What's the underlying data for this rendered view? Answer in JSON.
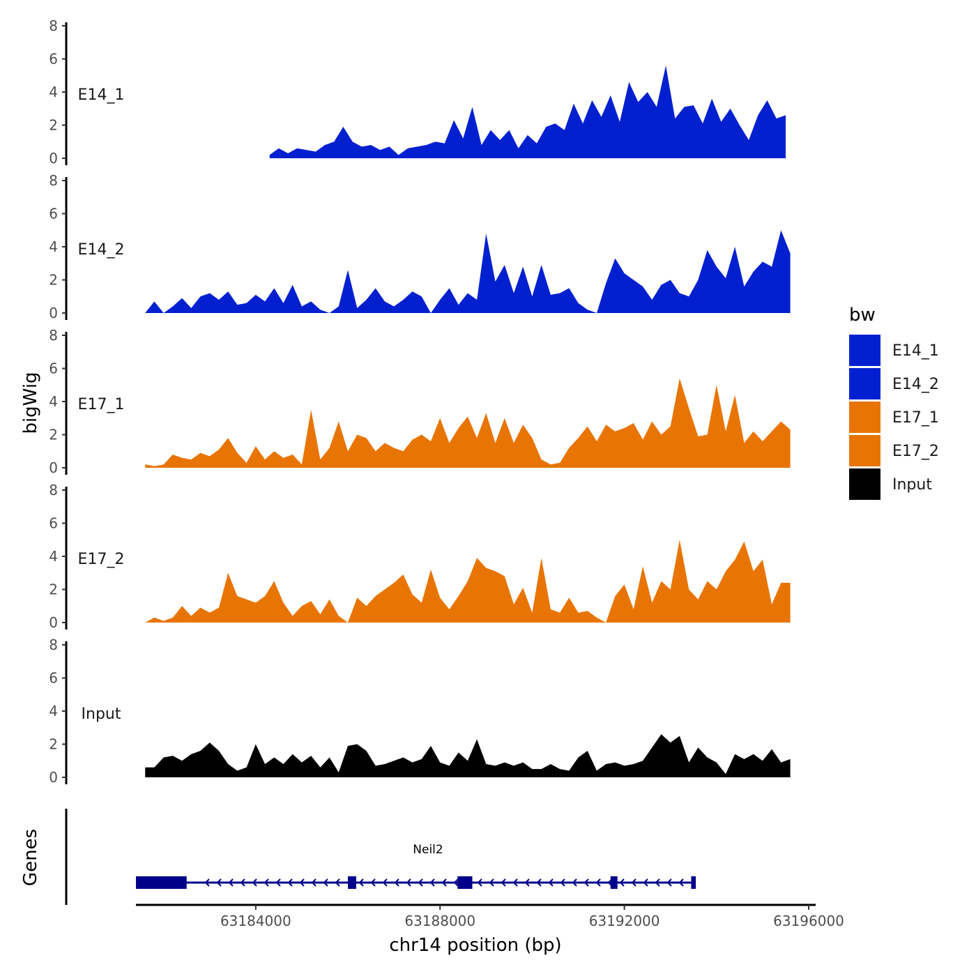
{
  "chart_data": {
    "type": "area",
    "xlabel": "chr14 position (bp)",
    "ylabel": "bigWig",
    "genes_label": "Genes",
    "xlim": [
      63181400,
      63196000
    ],
    "xticks": [
      63184000,
      63188000,
      63192000,
      63196000
    ],
    "xtick_labels": [
      "63184000",
      "63188000",
      "63192000",
      "63196000"
    ],
    "ylim": [
      0,
      8
    ],
    "yticks": [
      0,
      2,
      4,
      6,
      8
    ],
    "ytick_labels": [
      "0",
      "2",
      "4",
      "6",
      "8"
    ],
    "legend": {
      "title": "bw",
      "position": "right",
      "entries": [
        {
          "label": "E14_1",
          "color": "#0020D0"
        },
        {
          "label": "E14_2",
          "color": "#0020D0"
        },
        {
          "label": "E17_1",
          "color": "#E87503"
        },
        {
          "label": "E17_2",
          "color": "#E87503"
        },
        {
          "label": "Input",
          "color": "#000000"
        }
      ]
    },
    "series": [
      {
        "name": "E14_1",
        "color": "#0020D0",
        "x": [
          63184300,
          63184500,
          63184700,
          63184900,
          63185100,
          63185300,
          63185500,
          63185700,
          63185900,
          63186100,
          63186300,
          63186500,
          63186700,
          63186900,
          63187100,
          63187300,
          63187500,
          63187700,
          63187900,
          63188100,
          63188300,
          63188500,
          63188700,
          63188900,
          63189100,
          63189300,
          63189500,
          63189700,
          63189900,
          63190100,
          63190300,
          63190500,
          63190700,
          63190900,
          63191100,
          63191300,
          63191500,
          63191700,
          63191900,
          63192100,
          63192300,
          63192500,
          63192700,
          63192900,
          63193100,
          63193300,
          63193500,
          63193700,
          63193900,
          63194100,
          63194300,
          63194500,
          63194700,
          63194900,
          63195100,
          63195300,
          63195500
        ],
        "values": [
          0.2,
          0.6,
          0.3,
          0.6,
          0.5,
          0.4,
          0.8,
          1.0,
          1.9,
          1.0,
          0.7,
          0.8,
          0.5,
          0.7,
          0.2,
          0.6,
          0.7,
          0.8,
          1.0,
          0.9,
          2.3,
          1.2,
          3.1,
          0.8,
          1.7,
          1.1,
          1.7,
          0.6,
          1.4,
          0.9,
          1.9,
          2.1,
          1.7,
          3.3,
          2.1,
          3.5,
          2.5,
          3.8,
          2.2,
          4.6,
          3.4,
          4.0,
          3.1,
          5.6,
          2.4,
          3.1,
          3.2,
          2.1,
          3.6,
          2.2,
          3.0,
          2.0,
          1.1,
          2.6,
          3.5,
          2.4,
          2.6
        ]
      },
      {
        "name": "E14_2",
        "color": "#0020D0",
        "x": [
          63181600,
          63181800,
          63182000,
          63182200,
          63182400,
          63182600,
          63182800,
          63183000,
          63183200,
          63183400,
          63183600,
          63183800,
          63184000,
          63184200,
          63184400,
          63184600,
          63184800,
          63185000,
          63185200,
          63185400,
          63185600,
          63185800,
          63186000,
          63186200,
          63186400,
          63186600,
          63186800,
          63187000,
          63187200,
          63187400,
          63187600,
          63187800,
          63188000,
          63188200,
          63188400,
          63188600,
          63188800,
          63189000,
          63189200,
          63189400,
          63189600,
          63189800,
          63190000,
          63190200,
          63190400,
          63190600,
          63190800,
          63191000,
          63191200,
          63191400,
          63191600,
          63191800,
          63192000,
          63192200,
          63192400,
          63192600,
          63192800,
          63193000,
          63193200,
          63193400,
          63193600,
          63193800,
          63194000,
          63194200,
          63194400,
          63194600,
          63194800,
          63195000,
          63195200,
          63195400,
          63195600
        ],
        "values": [
          0.0,
          0.7,
          0.0,
          0.4,
          0.9,
          0.3,
          1.0,
          1.2,
          0.8,
          1.3,
          0.5,
          0.6,
          1.1,
          0.7,
          1.5,
          0.6,
          1.7,
          0.4,
          0.7,
          0.2,
          0.0,
          0.4,
          2.6,
          0.3,
          0.8,
          1.5,
          0.7,
          0.4,
          0.8,
          1.3,
          1.0,
          0.0,
          0.8,
          1.5,
          0.5,
          1.2,
          0.8,
          4.8,
          1.9,
          2.9,
          1.2,
          2.8,
          1.0,
          2.9,
          1.1,
          1.2,
          1.5,
          0.6,
          0.2,
          0.0,
          1.8,
          3.3,
          2.4,
          2.0,
          1.6,
          0.8,
          1.7,
          2.0,
          1.2,
          1.0,
          2.0,
          3.8,
          2.8,
          2.1,
          4.0,
          1.6,
          2.5,
          3.1,
          2.8,
          5.0,
          3.6
        ]
      },
      {
        "name": "E17_1",
        "color": "#E87503",
        "x": [
          63181600,
          63181800,
          63182000,
          63182200,
          63182400,
          63182600,
          63182800,
          63183000,
          63183200,
          63183400,
          63183600,
          63183800,
          63184000,
          63184200,
          63184400,
          63184600,
          63184800,
          63185000,
          63185200,
          63185400,
          63185600,
          63185800,
          63186000,
          63186200,
          63186400,
          63186600,
          63186800,
          63187000,
          63187200,
          63187400,
          63187600,
          63187800,
          63188000,
          63188200,
          63188400,
          63188600,
          63188800,
          63189000,
          63189200,
          63189400,
          63189600,
          63189800,
          63190000,
          63190200,
          63190400,
          63190600,
          63190800,
          63191000,
          63191200,
          63191400,
          63191600,
          63191800,
          63192000,
          63192200,
          63192400,
          63192600,
          63192800,
          63193000,
          63193200,
          63193400,
          63193600,
          63193800,
          63194000,
          63194200,
          63194400,
          63194600,
          63194800,
          63195000,
          63195200,
          63195400,
          63195600
        ],
        "values": [
          0.2,
          0.1,
          0.2,
          0.8,
          0.6,
          0.5,
          0.9,
          0.7,
          1.1,
          1.8,
          0.9,
          0.3,
          1.3,
          0.5,
          1.0,
          0.6,
          0.8,
          0.2,
          3.5,
          0.5,
          1.2,
          2.8,
          1.0,
          2.0,
          1.8,
          1.0,
          1.5,
          1.2,
          1.0,
          1.7,
          2.0,
          1.6,
          3.0,
          1.5,
          2.4,
          3.1,
          1.8,
          3.3,
          1.5,
          3.0,
          1.5,
          2.6,
          1.8,
          0.5,
          0.2,
          0.3,
          1.2,
          1.8,
          2.5,
          1.6,
          2.6,
          2.2,
          2.4,
          2.7,
          1.7,
          2.8,
          2.0,
          2.5,
          5.4,
          3.6,
          1.9,
          2.0,
          5.0,
          2.2,
          4.4,
          1.5,
          2.2,
          1.6,
          2.2,
          2.8,
          2.3
        ]
      },
      {
        "name": "E17_2",
        "color": "#E87503",
        "x": [
          63181600,
          63181800,
          63182000,
          63182200,
          63182400,
          63182600,
          63182800,
          63183000,
          63183200,
          63183400,
          63183600,
          63183800,
          63184000,
          63184200,
          63184400,
          63184600,
          63184800,
          63185000,
          63185200,
          63185400,
          63185600,
          63185800,
          63186000,
          63186200,
          63186400,
          63186600,
          63186800,
          63187000,
          63187200,
          63187400,
          63187600,
          63187800,
          63188000,
          63188200,
          63188400,
          63188600,
          63188800,
          63189000,
          63189200,
          63189400,
          63189600,
          63189800,
          63190000,
          63190200,
          63190400,
          63190600,
          63190800,
          63191000,
          63191200,
          63191400,
          63191600,
          63191800,
          63192000,
          63192200,
          63192400,
          63192600,
          63192800,
          63193000,
          63193200,
          63193400,
          63193600,
          63193800,
          63194000,
          63194200,
          63194400,
          63194600,
          63194800,
          63195000,
          63195200,
          63195400,
          63195600
        ],
        "values": [
          0.0,
          0.3,
          0.1,
          0.3,
          1.0,
          0.4,
          0.9,
          0.6,
          0.9,
          3.0,
          1.6,
          1.4,
          1.2,
          1.6,
          2.5,
          1.2,
          0.4,
          1.0,
          1.3,
          0.5,
          1.4,
          0.4,
          0.0,
          1.5,
          1.0,
          1.6,
          2.0,
          2.4,
          2.9,
          1.7,
          1.2,
          3.2,
          1.5,
          0.8,
          1.6,
          2.5,
          3.9,
          3.3,
          3.1,
          2.8,
          1.1,
          2.1,
          0.6,
          3.9,
          0.8,
          0.6,
          1.5,
          0.6,
          0.7,
          0.3,
          0.0,
          1.6,
          2.3,
          0.8,
          3.4,
          1.2,
          2.5,
          2.0,
          5.0,
          2.0,
          1.4,
          2.5,
          2.0,
          3.1,
          3.8,
          4.9,
          3.1,
          3.8,
          1.1,
          2.4,
          2.4
        ]
      },
      {
        "name": "Input",
        "color": "#000000",
        "x": [
          63181600,
          63181800,
          63182000,
          63182200,
          63182400,
          63182600,
          63182800,
          63183000,
          63183200,
          63183400,
          63183600,
          63183800,
          63184000,
          63184200,
          63184400,
          63184600,
          63184800,
          63185000,
          63185200,
          63185400,
          63185600,
          63185800,
          63186000,
          63186200,
          63186400,
          63186600,
          63186800,
          63187000,
          63187200,
          63187400,
          63187600,
          63187800,
          63188000,
          63188200,
          63188400,
          63188600,
          63188800,
          63189000,
          63189200,
          63189400,
          63189600,
          63189800,
          63190000,
          63190200,
          63190400,
          63190600,
          63190800,
          63191000,
          63191200,
          63191400,
          63191600,
          63191800,
          63192000,
          63192200,
          63192400,
          63192600,
          63192800,
          63193000,
          63193200,
          63193400,
          63193600,
          63193800,
          63194000,
          63194200,
          63194400,
          63194600,
          63194800,
          63195000,
          63195200,
          63195400,
          63195600
        ],
        "values": [
          0.6,
          0.6,
          1.2,
          1.3,
          1.0,
          1.4,
          1.6,
          2.1,
          1.6,
          0.8,
          0.4,
          0.6,
          2.0,
          0.8,
          1.2,
          0.8,
          1.4,
          0.9,
          1.3,
          0.6,
          1.2,
          0.3,
          1.9,
          2.0,
          1.6,
          0.7,
          0.8,
          1.0,
          1.2,
          0.9,
          1.1,
          1.9,
          0.9,
          0.7,
          1.5,
          1.0,
          2.3,
          0.8,
          0.7,
          0.9,
          0.7,
          0.9,
          0.5,
          0.5,
          0.8,
          0.5,
          0.4,
          1.2,
          1.6,
          0.4,
          0.8,
          0.9,
          0.7,
          0.8,
          1.0,
          1.8,
          2.6,
          2.1,
          2.5,
          0.9,
          1.8,
          1.2,
          0.9,
          0.2,
          1.4,
          1.1,
          1.4,
          1.0,
          1.7,
          0.9,
          1.1
        ]
      }
    ],
    "gene": {
      "name": "Neil2",
      "strand": "-",
      "start": 63181400,
      "end": 63193550,
      "exons": [
        [
          63181400,
          63182500
        ],
        [
          63186000,
          63186180
        ],
        [
          63188380,
          63188700
        ],
        [
          63191700,
          63191850
        ],
        [
          63193450,
          63193550
        ]
      ],
      "color": "#00008B"
    }
  }
}
